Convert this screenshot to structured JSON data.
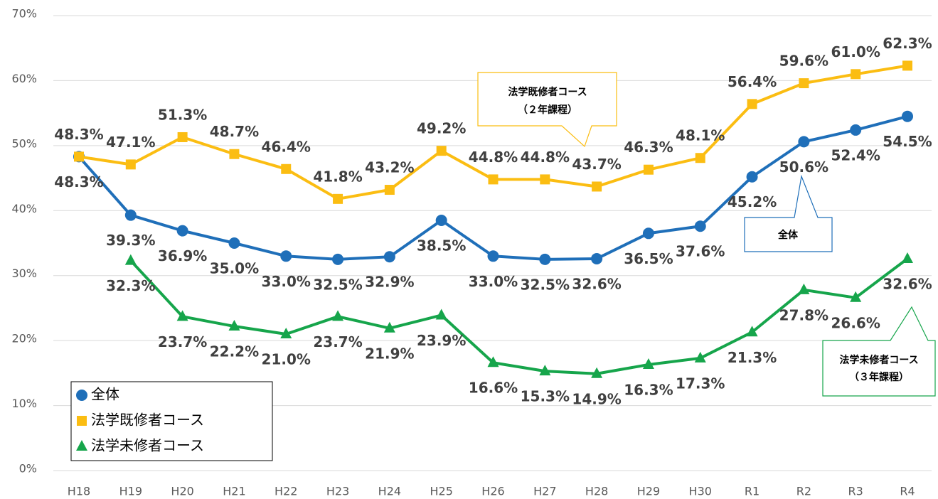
{
  "chart_data": {
    "type": "line",
    "categories": [
      "H18",
      "H19",
      "H20",
      "H21",
      "H22",
      "H23",
      "H24",
      "H25",
      "H26",
      "H27",
      "H28",
      "H29",
      "H30",
      "R1",
      "R2",
      "R3",
      "R4"
    ],
    "series": [
      {
        "name": "全体",
        "color": "#1f6fb9",
        "marker": "circle",
        "values": [
          48.3,
          39.3,
          36.9,
          35.0,
          33.0,
          32.5,
          32.9,
          38.5,
          33.0,
          32.5,
          32.6,
          36.5,
          37.6,
          45.2,
          50.6,
          52.4,
          54.5
        ],
        "value_labels": [
          "48.3%",
          "39.3%",
          "36.9%",
          "35.0%",
          "33.0%",
          "32.5%",
          "32.9%",
          "38.5%",
          "33.0%",
          "32.5%",
          "32.6%",
          "36.5%",
          "37.6%",
          "45.2%",
          "50.6%",
          "52.4%",
          "54.5%"
        ]
      },
      {
        "name": "法学既修者コース",
        "color": "#fbbd12",
        "marker": "square",
        "values": [
          48.3,
          47.1,
          51.3,
          48.7,
          46.4,
          41.8,
          43.2,
          49.2,
          44.8,
          44.8,
          43.7,
          46.3,
          48.1,
          56.4,
          59.6,
          61.0,
          62.3
        ],
        "value_labels": [
          "48.3%",
          "47.1%",
          "51.3%",
          "48.7%",
          "46.4%",
          "41.8%",
          "43.2%",
          "49.2%",
          "44.8%",
          "44.8%",
          "43.7%",
          "46.3%",
          "48.1%",
          "56.4%",
          "59.6%",
          "61.0%",
          "62.3%"
        ]
      },
      {
        "name": "法学未修者コース",
        "color": "#16a54b",
        "marker": "triangle",
        "values": [
          null,
          32.3,
          23.7,
          22.2,
          21.0,
          23.7,
          21.9,
          23.9,
          16.6,
          15.3,
          14.9,
          16.3,
          17.3,
          21.3,
          27.8,
          26.6,
          32.6
        ],
        "value_labels": [
          null,
          "32.3%",
          "23.7%",
          "22.2%",
          "21.0%",
          "23.7%",
          "21.9%",
          "23.9%",
          "16.6%",
          "15.3%",
          "14.9%",
          "16.3%",
          "17.3%",
          "21.3%",
          "27.8%",
          "26.6%",
          "32.6%"
        ]
      }
    ],
    "ylim": [
      0,
      70
    ],
    "yticks": [
      {
        "value": 0,
        "label": "0%"
      },
      {
        "value": 10,
        "label": "10%"
      },
      {
        "value": 20,
        "label": "20%"
      },
      {
        "value": 30,
        "label": "30%"
      },
      {
        "value": 40,
        "label": "40%"
      },
      {
        "value": 50,
        "label": "50%"
      },
      {
        "value": 60,
        "label": "60%"
      },
      {
        "value": 70,
        "label": "70%"
      }
    ],
    "grid": true,
    "legend": "lower left",
    "annotations": [
      {
        "lines": [
          "法学既修者コース",
          "（２年課程）"
        ]
      },
      {
        "lines": [
          "全体"
        ]
      },
      {
        "lines": [
          "法学未修者コース",
          "（３年課程）"
        ]
      }
    ]
  }
}
